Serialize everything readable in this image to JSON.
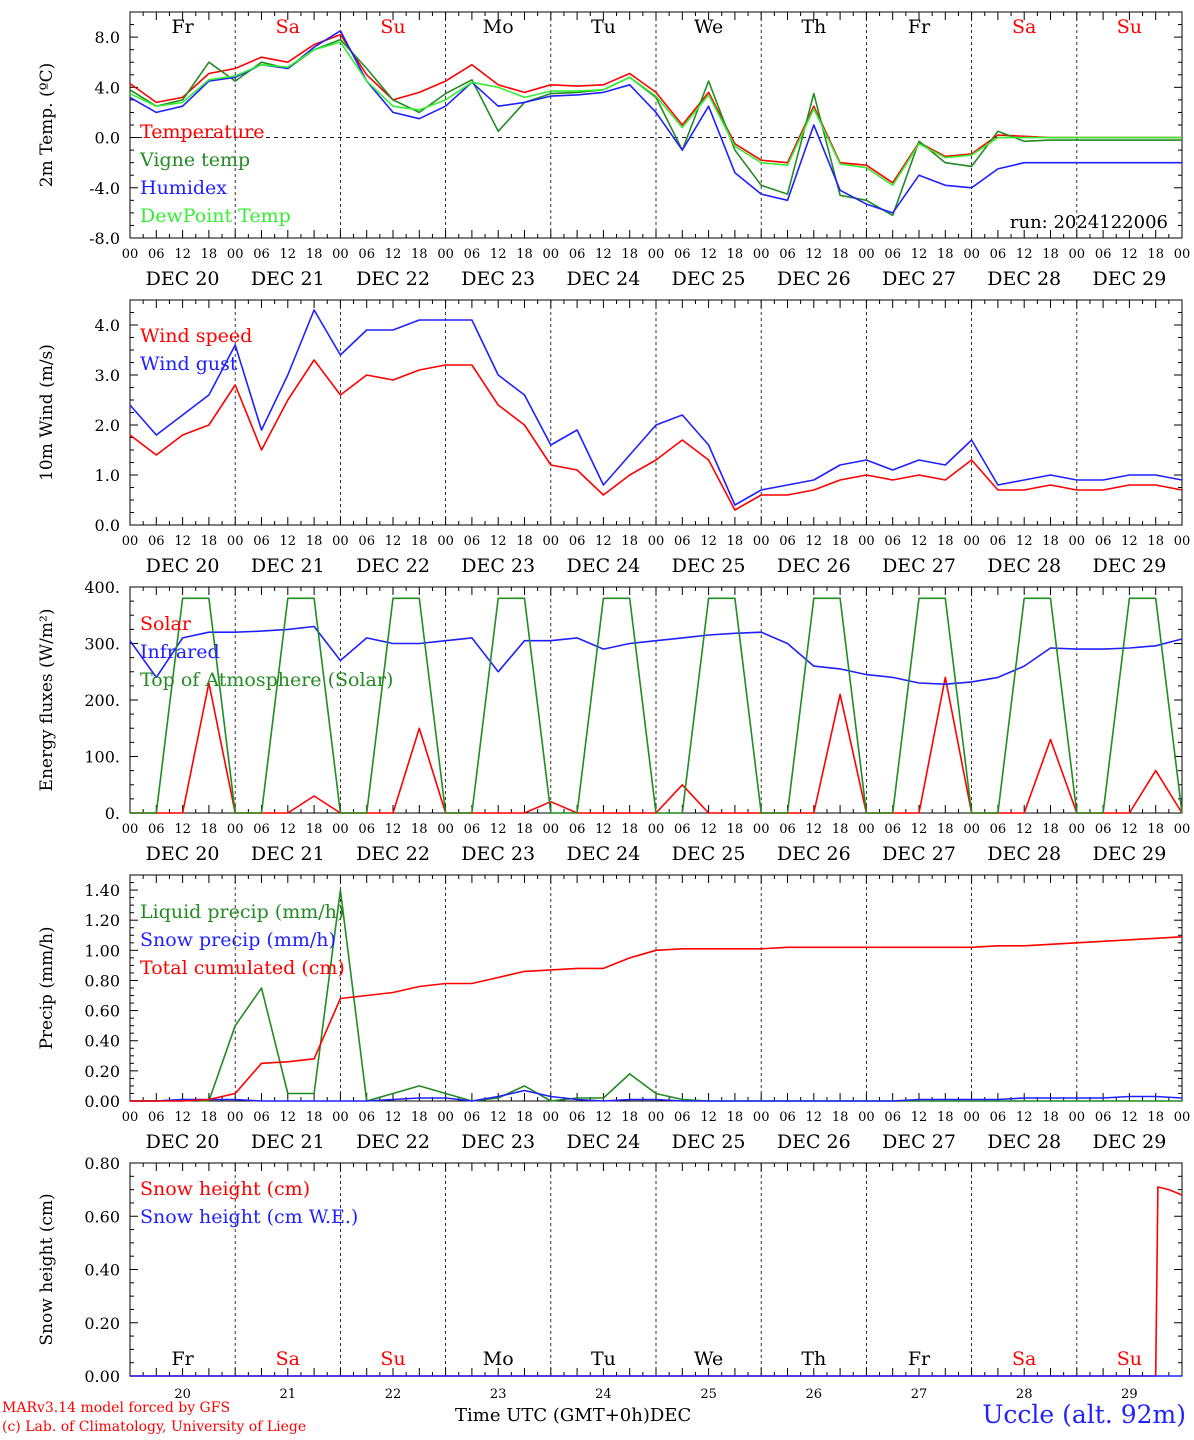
{
  "days": [
    "Fr",
    "Sa",
    "Su",
    "Mo",
    "Tu",
    "We",
    "Th",
    "Fr",
    "Sa",
    "Su"
  ],
  "day_colors": [
    "#000000",
    "#ff0000",
    "#ff0000",
    "#000000",
    "#000000",
    "#000000",
    "#000000",
    "#000000",
    "#ff0000",
    "#ff0000"
  ],
  "dates": [
    "DEC 20",
    "DEC 21",
    "DEC 22",
    "DEC 23",
    "DEC 24",
    "DEC 25",
    "DEC 26",
    "DEC 27",
    "DEC 28",
    "DEC 29"
  ],
  "hour_labels": [
    "00",
    "06",
    "12",
    "18"
  ],
  "date_numbers": [
    "20",
    "21",
    "22",
    "23",
    "24",
    "25",
    "26",
    "27",
    "28",
    "29"
  ],
  "month": "DEC",
  "x_title": "Time UTC (GMT+0h)",
  "credit_line1": "MARv3.14 model forced by GFS",
  "credit_line2": "(c) Lab. of Climatology, University of Liege",
  "station": "Uccle (alt. 92m)",
  "run_label": "run: 2024122006",
  "colors": {
    "red": "#ff0000",
    "green": "#228b22",
    "blue": "#2020ff",
    "lightgreen": "#33ee33"
  },
  "chart_data": [
    {
      "type": "line",
      "ylabel": "2m Temp. (ºC)",
      "ylim": [
        -8,
        10
      ],
      "yticks": [
        "-8.0",
        "-4.0",
        "0.0",
        "4.0",
        "8.0"
      ],
      "ytick_values": [
        -8,
        -4,
        0,
        4,
        8
      ],
      "zero_line": true,
      "x_hours": [
        0,
        6,
        12,
        18,
        24,
        30,
        36,
        42,
        48,
        54,
        60,
        66,
        72,
        78,
        84,
        90,
        96,
        102,
        108,
        114,
        120,
        126,
        132,
        138,
        144,
        150,
        156,
        162,
        168,
        174,
        180,
        186,
        192,
        198,
        204,
        210,
        216,
        222,
        228,
        234,
        240
      ],
      "series": [
        {
          "name": "Temperature",
          "color": "#ff0000",
          "values": [
            4.3,
            2.8,
            3.2,
            5.1,
            5.5,
            6.4,
            6.0,
            7.4,
            8.2,
            5.0,
            3.0,
            3.6,
            4.5,
            5.8,
            4.2,
            3.6,
            4.2,
            4.1,
            4.2,
            5.1,
            3.6,
            1.0,
            3.6,
            -0.5,
            -1.8,
            -2.0,
            2.5,
            -2.0,
            -2.2,
            -3.6,
            -0.4,
            -1.5,
            -1.3,
            0.2,
            0.1,
            0.0,
            0.0,
            0.0,
            0.0,
            0.0,
            0.0
          ]
        },
        {
          "name": "Vigne temp",
          "color": "#228b22",
          "values": [
            3.8,
            2.5,
            3.0,
            6.0,
            4.5,
            6.0,
            5.5,
            7.0,
            7.8,
            5.5,
            3.0,
            2.0,
            3.5,
            4.6,
            0.5,
            2.8,
            3.5,
            3.6,
            3.8,
            4.8,
            3.2,
            -1.0,
            4.5,
            -1.0,
            -3.8,
            -4.5,
            3.5,
            -4.6,
            -5.0,
            -6.2,
            -0.3,
            -2.0,
            -2.3,
            0.5,
            -0.3,
            -0.2,
            -0.2,
            -0.2,
            -0.2,
            -0.2,
            -0.2
          ]
        },
        {
          "name": "Humidex",
          "color": "#2020ff",
          "values": [
            3.2,
            2.0,
            2.5,
            4.5,
            4.8,
            5.8,
            5.5,
            7.2,
            8.5,
            4.5,
            2.0,
            1.5,
            2.5,
            4.4,
            2.5,
            2.8,
            3.3,
            3.4,
            3.6,
            4.2,
            2.0,
            -1.0,
            2.5,
            -2.8,
            -4.5,
            -5.0,
            1.0,
            -4.2,
            -5.3,
            -6.0,
            -3.0,
            -3.8,
            -4.0,
            -2.5,
            -2.0,
            -2.0,
            -2.0,
            -2.0,
            -2.0,
            -2.0,
            -2.0
          ]
        },
        {
          "name": "DewPoint Temp",
          "color": "#33ee33",
          "values": [
            3.5,
            2.5,
            2.8,
            4.6,
            4.9,
            5.8,
            5.6,
            7.0,
            7.6,
            4.5,
            2.5,
            2.2,
            3.0,
            4.4,
            4.0,
            3.2,
            3.7,
            3.7,
            3.8,
            4.8,
            3.3,
            0.8,
            3.4,
            -0.7,
            -2.0,
            -2.2,
            2.3,
            -2.1,
            -2.4,
            -3.8,
            -0.5,
            -1.6,
            -1.4,
            0.0,
            0.0,
            0.0,
            0.0,
            0.0,
            0.0,
            0.0,
            0.0
          ]
        }
      ]
    },
    {
      "type": "line",
      "ylabel": "10m Wind (m/s)",
      "ylim": [
        0,
        4.5
      ],
      "yticks": [
        "0.0",
        "1.0",
        "2.0",
        "3.0",
        "4.0"
      ],
      "ytick_values": [
        0,
        1,
        2,
        3,
        4
      ],
      "x_hours": [
        0,
        6,
        12,
        18,
        24,
        30,
        36,
        42,
        48,
        54,
        60,
        66,
        72,
        78,
        84,
        90,
        96,
        102,
        108,
        114,
        120,
        126,
        132,
        138,
        144,
        150,
        156,
        162,
        168,
        174,
        180,
        186,
        192,
        198,
        204,
        210,
        216,
        222,
        228,
        234,
        240
      ],
      "series": [
        {
          "name": "Wind speed",
          "color": "#ff0000",
          "values": [
            1.8,
            1.4,
            1.8,
            2.0,
            2.8,
            1.5,
            2.5,
            3.3,
            2.6,
            3.0,
            2.9,
            3.1,
            3.2,
            3.2,
            2.4,
            2.0,
            1.2,
            1.1,
            0.6,
            1.0,
            1.3,
            1.7,
            1.3,
            0.3,
            0.6,
            0.6,
            0.7,
            0.9,
            1.0,
            0.9,
            1.0,
            0.9,
            1.3,
            0.7,
            0.7,
            0.8,
            0.7,
            0.7,
            0.8,
            0.8,
            0.7
          ]
        },
        {
          "name": "Wind gust",
          "color": "#2020ff",
          "values": [
            2.4,
            1.8,
            2.2,
            2.6,
            3.6,
            1.9,
            3.0,
            4.3,
            3.4,
            3.9,
            3.9,
            4.1,
            4.1,
            4.1,
            3.0,
            2.6,
            1.6,
            1.9,
            0.8,
            1.4,
            2.0,
            2.2,
            1.6,
            0.4,
            0.7,
            0.8,
            0.9,
            1.2,
            1.3,
            1.1,
            1.3,
            1.2,
            1.7,
            0.8,
            0.9,
            1.0,
            0.9,
            0.9,
            1.0,
            1.0,
            0.9
          ]
        }
      ]
    },
    {
      "type": "line",
      "ylabel": "Energy fluxes (W/m²)",
      "ylim": [
        0,
        400
      ],
      "yticks": [
        "0.",
        "100.",
        "200.",
        "300.",
        "400."
      ],
      "ytick_values": [
        0,
        100,
        200,
        300,
        400
      ],
      "x_hours": [
        0,
        6,
        12,
        18,
        24,
        30,
        36,
        42,
        48,
        54,
        60,
        66,
        72,
        78,
        84,
        90,
        96,
        102,
        108,
        114,
        120,
        126,
        132,
        138,
        144,
        150,
        156,
        162,
        168,
        174,
        180,
        186,
        192,
        198,
        204,
        210,
        216,
        222,
        228,
        234,
        240
      ],
      "series": [
        {
          "name": "Solar",
          "color": "#ff0000",
          "values": [
            0,
            0,
            0,
            230,
            0,
            0,
            0,
            30,
            0,
            0,
            0,
            150,
            0,
            0,
            0,
            0,
            20,
            0,
            0,
            0,
            0,
            50,
            0,
            0,
            0,
            0,
            0,
            210,
            0,
            0,
            0,
            240,
            0,
            0,
            0,
            130,
            0,
            0,
            0,
            75,
            0
          ]
        },
        {
          "name": "Infrared",
          "color": "#2020ff",
          "values": [
            305,
            240,
            310,
            320,
            320,
            322,
            325,
            330,
            270,
            310,
            300,
            300,
            305,
            310,
            250,
            305,
            305,
            310,
            290,
            300,
            305,
            310,
            315,
            318,
            320,
            300,
            260,
            255,
            245,
            240,
            230,
            228,
            232,
            240,
            260,
            292,
            290,
            290,
            292,
            296,
            308
          ]
        },
        {
          "name": "Top of Atmosphere (Solar)",
          "color": "#228b22",
          "values": [
            0,
            0,
            380,
            380,
            0,
            0,
            380,
            380,
            0,
            0,
            380,
            380,
            0,
            0,
            380,
            380,
            0,
            0,
            380,
            380,
            0,
            0,
            380,
            380,
            0,
            0,
            380,
            380,
            0,
            0,
            380,
            380,
            0,
            0,
            380,
            380,
            0,
            0,
            380,
            380,
            0
          ]
        }
      ]
    },
    {
      "type": "line",
      "ylabel": "Precip (mm/h)",
      "ylim": [
        0,
        1.5
      ],
      "yticks": [
        "0.00",
        "0.20",
        "0.40",
        "0.60",
        "0.80",
        "1.00",
        "1.20",
        "1.40"
      ],
      "ytick_values": [
        0,
        0.2,
        0.4,
        0.6,
        0.8,
        1.0,
        1.2,
        1.4
      ],
      "x_hours": [
        0,
        6,
        12,
        18,
        24,
        30,
        36,
        42,
        48,
        54,
        60,
        66,
        72,
        78,
        84,
        90,
        96,
        102,
        108,
        114,
        120,
        126,
        132,
        138,
        144,
        150,
        156,
        162,
        168,
        174,
        180,
        186,
        192,
        198,
        204,
        210,
        216,
        222,
        228,
        234,
        240
      ],
      "series": [
        {
          "name": "Liquid precip (mm/h)",
          "color": "#228b22",
          "values": [
            0,
            0,
            0.01,
            0,
            0.5,
            0.75,
            0.05,
            0.05,
            1.4,
            0,
            0.05,
            0.1,
            0.05,
            0,
            0.02,
            0.1,
            0,
            0.02,
            0.02,
            0.18,
            0.05,
            0.01,
            0,
            0,
            0,
            0,
            0,
            0,
            0,
            0,
            0,
            0,
            0,
            0,
            0,
            0,
            0,
            0,
            0,
            0,
            0
          ]
        },
        {
          "name": "Snow precip (mm/h)",
          "color": "#2020ff",
          "values": [
            0,
            0,
            0.01,
            0.01,
            0.01,
            0,
            0,
            0,
            0,
            0,
            0.01,
            0.02,
            0.02,
            0,
            0.03,
            0.07,
            0.03,
            0.01,
            0,
            0.01,
            0.01,
            0,
            0,
            0,
            0,
            0,
            0,
            0,
            0,
            0,
            0.01,
            0.01,
            0.01,
            0.01,
            0.02,
            0.02,
            0.02,
            0.02,
            0.03,
            0.03,
            0.02
          ]
        },
        {
          "name": "Total cumulated (cm)",
          "color": "#ff0000",
          "values": [
            0,
            0,
            0,
            0.01,
            0.05,
            0.25,
            0.26,
            0.28,
            0.68,
            0.7,
            0.72,
            0.76,
            0.78,
            0.78,
            0.82,
            0.86,
            0.87,
            0.88,
            0.88,
            0.95,
            1.0,
            1.01,
            1.01,
            1.01,
            1.01,
            1.02,
            1.02,
            1.02,
            1.02,
            1.02,
            1.02,
            1.02,
            1.02,
            1.03,
            1.03,
            1.04,
            1.05,
            1.06,
            1.07,
            1.08,
            1.09
          ]
        }
      ]
    },
    {
      "type": "line",
      "ylabel": "Snow height (cm)",
      "ylim": [
        0,
        0.8
      ],
      "yticks": [
        "0.00",
        "0.20",
        "0.40",
        "0.60",
        "0.80"
      ],
      "ytick_values": [
        0,
        0.2,
        0.4,
        0.6,
        0.8
      ],
      "x_hours": [
        0,
        24,
        48,
        72,
        96,
        120,
        144,
        168,
        192,
        216,
        234,
        234.5,
        237,
        240
      ],
      "series": [
        {
          "name": "Snow height (cm)",
          "color": "#ff0000",
          "values": [
            0,
            0,
            0,
            0,
            0,
            0,
            0,
            0,
            0,
            0,
            0,
            0.71,
            0.7,
            0.68
          ]
        },
        {
          "name": "Snow height (cm W.E.)",
          "color": "#2020ff",
          "values": [
            0,
            0,
            0,
            0,
            0,
            0,
            0,
            0,
            0,
            0,
            0,
            0,
            0,
            0
          ]
        }
      ]
    }
  ]
}
